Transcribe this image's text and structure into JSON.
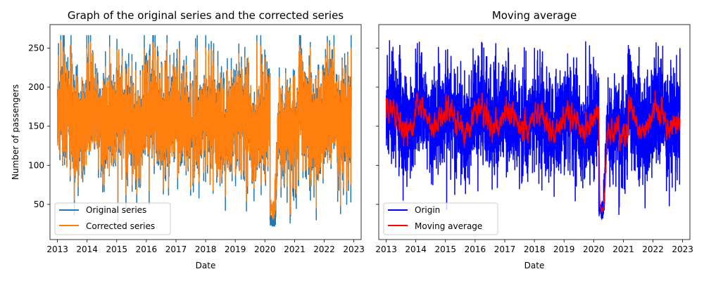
{
  "chart_data": [
    {
      "type": "line",
      "title": "Graph of the original series and the corrected series",
      "xlabel": "Date",
      "ylabel": "Number of passengers",
      "xlim": [
        "2012-10-01",
        "2023-04-01"
      ],
      "ylim": [
        5,
        280
      ],
      "x_ticks": [
        "2013",
        "2014",
        "2015",
        "2016",
        "2017",
        "2018",
        "2019",
        "2020",
        "2021",
        "2022",
        "2023"
      ],
      "y_ticks": [
        50,
        100,
        150,
        200,
        250
      ],
      "grid": false,
      "legend": "lower-left",
      "x_start": "2013-01-01",
      "x_end": "2022-11-30",
      "series": [
        {
          "name": "Original series",
          "color": "#1f77b4",
          "samples": "daily, approx. 2013-01-01 to 2022-11-30",
          "range": [
            16,
            268
          ],
          "typical_band": [
            110,
            200
          ],
          "mean": 155
        },
        {
          "name": "Corrected series",
          "color": "#ff7f0e",
          "samples": "daily, approx. 2013-01-01 to 2022-11-30",
          "range": [
            15,
            262
          ],
          "typical_band": [
            115,
            195
          ],
          "mean": 155
        }
      ]
    },
    {
      "type": "line",
      "title": "Moving average",
      "xlabel": "Date",
      "ylabel": "",
      "shared_y": true,
      "xlim": [
        "2012-10-01",
        "2023-04-01"
      ],
      "ylim": [
        5,
        280
      ],
      "x_ticks": [
        "2013",
        "2014",
        "2015",
        "2016",
        "2017",
        "2018",
        "2019",
        "2020",
        "2021",
        "2022",
        "2023"
      ],
      "grid": false,
      "legend": "lower-left",
      "x_start": "2013-01-01",
      "x_end": "2022-11-30",
      "series": [
        {
          "name": "Origin",
          "color": "#0000ff",
          "samples": "daily, approx. 2013-01-01 to 2022-11-30",
          "range": [
            15,
            262
          ]
        },
        {
          "name": "Moving average",
          "color": "#ff0000",
          "samples": "smoothed, approx. 2013-01-01 to 2022-11-30",
          "range": [
            18,
            228
          ],
          "typical_band": [
            125,
            185
          ]
        }
      ]
    }
  ]
}
